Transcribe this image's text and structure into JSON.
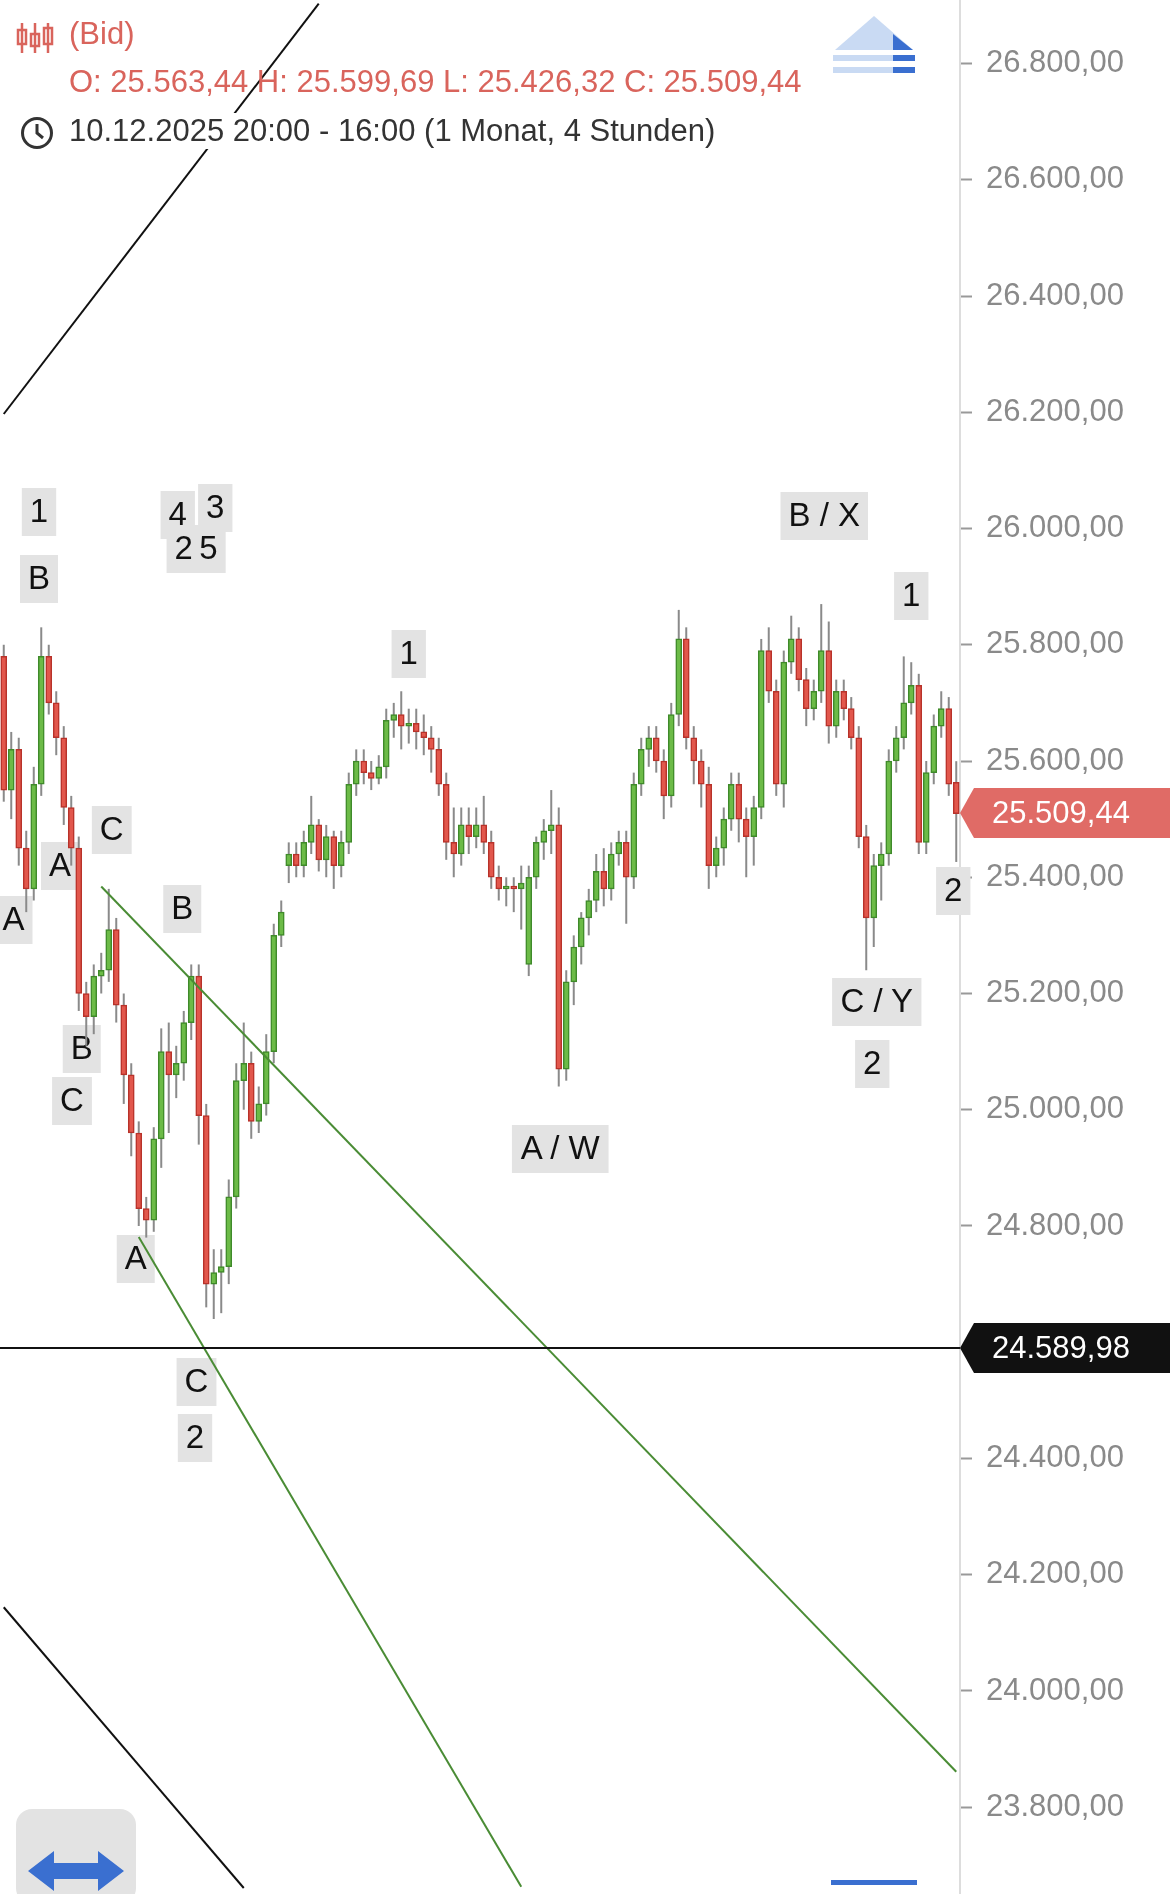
{
  "chart_data": {
    "type": "candlestick",
    "title": "(Bid)",
    "subtitle": "O: 25.563,44  H: 25.599,69  L: 25.426,32  C: 25.509,44",
    "categories": [
      null,
      null,
      null,
      null,
      null,
      null,
      null,
      null,
      null,
      null,
      null,
      null,
      null,
      null,
      null,
      null,
      null,
      null,
      null,
      null,
      null,
      null,
      null,
      null,
      null,
      null,
      null,
      null,
      null,
      null,
      null,
      null,
      null,
      null,
      null,
      null,
      null,
      null,
      null,
      null,
      null,
      null,
      null,
      null,
      null,
      null,
      null,
      null,
      null,
      null,
      null,
      null,
      null,
      null,
      null,
      null,
      null,
      null,
      null,
      null,
      null,
      null,
      null,
      null,
      null,
      null,
      null,
      null,
      null,
      null,
      null,
      null,
      null,
      null,
      null,
      null,
      null,
      null,
      null,
      null,
      null,
      null,
      null,
      null,
      null,
      null,
      null,
      null,
      null,
      null,
      null,
      null,
      null,
      null,
      null,
      null,
      null,
      null,
      null,
      null,
      null,
      null,
      null,
      null,
      null,
      null,
      null,
      null,
      null,
      null,
      null,
      null,
      null,
      null,
      null,
      null,
      null,
      null,
      null,
      null,
      null,
      null,
      null,
      null,
      null,
      null,
      null,
      null
    ],
    "ohlc": [
      [
        25780,
        25800,
        25530,
        25550
      ],
      [
        25550,
        25650,
        25500,
        25620
      ],
      [
        25620,
        25640,
        25420,
        25450
      ],
      [
        25450,
        25480,
        25340,
        25380
      ],
      [
        25380,
        25590,
        25360,
        25560
      ],
      [
        25560,
        25830,
        25540,
        25780
      ],
      [
        25780,
        25800,
        25680,
        25700
      ],
      [
        25700,
        25720,
        25610,
        25640
      ],
      [
        25640,
        25660,
        25490,
        25520
      ],
      [
        25520,
        25540,
        25420,
        25450
      ],
      [
        25450,
        25470,
        25170,
        25200
      ],
      [
        25200,
        25220,
        25110,
        25160
      ],
      [
        25160,
        25250,
        25130,
        25230
      ],
      [
        25230,
        25270,
        25200,
        25240
      ],
      [
        25240,
        25380,
        25220,
        25310
      ],
      [
        25310,
        25330,
        25150,
        25180
      ],
      [
        25180,
        25200,
        25010,
        25060
      ],
      [
        25060,
        25080,
        24920,
        24960
      ],
      [
        24960,
        24980,
        24800,
        24830
      ],
      [
        24830,
        24850,
        24780,
        24810
      ],
      [
        24810,
        24970,
        24790,
        24950
      ],
      [
        24950,
        25140,
        24900,
        25100
      ],
      [
        25100,
        25150,
        24960,
        25060
      ],
      [
        25060,
        25110,
        25020,
        25080
      ],
      [
        25080,
        25170,
        25050,
        25150
      ],
      [
        25150,
        25250,
        25120,
        25230
      ],
      [
        25230,
        25250,
        24940,
        24990
      ],
      [
        24990,
        25010,
        24660,
        24700
      ],
      [
        24700,
        24760,
        24640,
        24720
      ],
      [
        24720,
        24760,
        24650,
        24730
      ],
      [
        24730,
        24880,
        24700,
        24850
      ],
      [
        24850,
        25080,
        24830,
        25050
      ],
      [
        25050,
        25150,
        25000,
        25080
      ],
      [
        25080,
        25100,
        24950,
        24980
      ],
      [
        24980,
        25040,
        24960,
        25010
      ],
      [
        25010,
        25130,
        24990,
        25100
      ],
      [
        25100,
        25320,
        25080,
        25300
      ],
      [
        25300,
        25360,
        25280,
        25340
      ],
      [
        25420,
        25460,
        25390,
        25440
      ],
      [
        25440,
        25460,
        25400,
        25420
      ],
      [
        25420,
        25480,
        25400,
        25460
      ],
      [
        25460,
        25540,
        25440,
        25490
      ],
      [
        25490,
        25500,
        25410,
        25430
      ],
      [
        25430,
        25490,
        25400,
        25470
      ],
      [
        25470,
        25480,
        25380,
        25420
      ],
      [
        25420,
        25480,
        25400,
        25460
      ],
      [
        25460,
        25580,
        25440,
        25560
      ],
      [
        25560,
        25620,
        25540,
        25600
      ],
      [
        25600,
        25620,
        25560,
        25580
      ],
      [
        25580,
        25600,
        25550,
        25570
      ],
      [
        25570,
        25610,
        25560,
        25590
      ],
      [
        25590,
        25690,
        25570,
        25670
      ],
      [
        25670,
        25700,
        25640,
        25680
      ],
      [
        25680,
        25720,
        25620,
        25660
      ],
      [
        25660,
        25690,
        25630,
        25665
      ],
      [
        25665,
        25690,
        25620,
        25650
      ],
      [
        25650,
        25680,
        25610,
        25640
      ],
      [
        25640,
        25660,
        25580,
        25620
      ],
      [
        25620,
        25640,
        25540,
        25560
      ],
      [
        25560,
        25580,
        25430,
        25460
      ],
      [
        25460,
        25520,
        25400,
        25440
      ],
      [
        25440,
        25520,
        25420,
        25490
      ],
      [
        25490,
        25520,
        25440,
        25470
      ],
      [
        25470,
        25520,
        25450,
        25490
      ],
      [
        25490,
        25540,
        25440,
        25460
      ],
      [
        25460,
        25480,
        25380,
        25400
      ],
      [
        25400,
        25420,
        25360,
        25380
      ],
      [
        25380,
        25400,
        25350,
        25385
      ],
      [
        25385,
        25400,
        25340,
        25380
      ],
      [
        25380,
        25420,
        25310,
        25390
      ],
      [
        25250,
        25420,
        25230,
        25400
      ],
      [
        25400,
        25470,
        25380,
        25460
      ],
      [
        25460,
        25500,
        25430,
        25480
      ],
      [
        25480,
        25550,
        25440,
        25490
      ],
      [
        25490,
        25520,
        25040,
        25070
      ],
      [
        25070,
        25240,
        25050,
        25220
      ],
      [
        25220,
        25300,
        25180,
        25280
      ],
      [
        25280,
        25340,
        25250,
        25330
      ],
      [
        25330,
        25380,
        25300,
        25360
      ],
      [
        25360,
        25440,
        25340,
        25410
      ],
      [
        25410,
        25450,
        25350,
        25380
      ],
      [
        25380,
        25460,
        25360,
        25440
      ],
      [
        25440,
        25480,
        25420,
        25460
      ],
      [
        25460,
        25480,
        25320,
        25400
      ],
      [
        25400,
        25580,
        25380,
        25560
      ],
      [
        25560,
        25640,
        25540,
        25620
      ],
      [
        25620,
        25660,
        25590,
        25640
      ],
      [
        25640,
        25660,
        25580,
        25600
      ],
      [
        25600,
        25620,
        25500,
        25540
      ],
      [
        25540,
        25700,
        25520,
        25680
      ],
      [
        25680,
        25860,
        25660,
        25810
      ],
      [
        25810,
        25830,
        25620,
        25640
      ],
      [
        25640,
        25660,
        25560,
        25600
      ],
      [
        25600,
        25620,
        25520,
        25560
      ],
      [
        25560,
        25590,
        25380,
        25420
      ],
      [
        25420,
        25470,
        25400,
        25450
      ],
      [
        25450,
        25520,
        25420,
        25500
      ],
      [
        25500,
        25580,
        25480,
        25560
      ],
      [
        25560,
        25580,
        25460,
        25500
      ],
      [
        25500,
        25520,
        25400,
        25470
      ],
      [
        25470,
        25540,
        25420,
        25520
      ],
      [
        25520,
        25810,
        25500,
        25790
      ],
      [
        25790,
        25830,
        25700,
        25720
      ],
      [
        25720,
        25740,
        25540,
        25560
      ],
      [
        25560,
        25790,
        25520,
        25770
      ],
      [
        25770,
        25850,
        25750,
        25810
      ],
      [
        25810,
        25830,
        25720,
        25740
      ],
      [
        25740,
        25760,
        25660,
        25690
      ],
      [
        25690,
        25740,
        25670,
        25720
      ],
      [
        25720,
        25870,
        25700,
        25790
      ],
      [
        25790,
        25840,
        25630,
        25660
      ],
      [
        25660,
        25740,
        25640,
        25720
      ],
      [
        25720,
        25740,
        25670,
        25690
      ],
      [
        25690,
        25710,
        25620,
        25640
      ],
      [
        25640,
        25660,
        25450,
        25470
      ],
      [
        25470,
        25490,
        25240,
        25330
      ],
      [
        25330,
        25440,
        25280,
        25420
      ],
      [
        25420,
        25460,
        25360,
        25440
      ],
      [
        25440,
        25620,
        25420,
        25600
      ],
      [
        25600,
        25660,
        25580,
        25640
      ],
      [
        25640,
        25780,
        25620,
        25700
      ],
      [
        25700,
        25770,
        25680,
        25730
      ],
      [
        25730,
        25750,
        25440,
        25460
      ],
      [
        25460,
        25600,
        25440,
        25580
      ],
      [
        25580,
        25680,
        25560,
        25660
      ],
      [
        25660,
        25720,
        25640,
        25690
      ],
      [
        25690,
        25710,
        25540,
        25560
      ],
      [
        25563.44,
        25599.69,
        25426.32,
        25509.44
      ]
    ],
    "series": [
      {
        "type": "line",
        "values": [
          null,
          null,
          null,
          null,
          null,
          null,
          null,
          null,
          null,
          null,
          null,
          null,
          null,
          25384,
          null,
          null,
          null,
          null,
          null,
          null,
          null,
          null,
          null,
          null,
          null,
          null,
          null,
          null,
          null,
          null,
          null,
          null,
          null,
          null,
          null,
          null,
          null,
          null,
          null,
          null,
          null,
          null,
          null,
          null,
          null,
          null,
          null,
          null,
          null,
          null,
          null,
          null,
          null,
          null,
          null,
          null,
          null,
          null,
          null,
          null,
          null,
          null,
          null,
          null,
          null,
          null,
          null,
          null,
          null,
          null,
          null,
          null,
          null,
          null,
          null,
          null,
          null,
          null,
          null,
          null,
          null,
          null,
          null,
          null,
          null,
          null,
          null,
          null,
          null,
          null,
          null,
          null,
          null,
          null,
          null,
          null,
          null,
          null,
          null,
          null,
          null,
          null,
          null,
          null,
          null,
          null,
          null,
          null,
          null,
          null,
          null,
          null,
          null,
          null,
          null,
          null,
          null,
          null,
          null,
          null,
          null,
          null,
          null,
          null,
          null,
          null,
          null,
          23861
        ],
        "color": "#4a8c35"
      },
      {
        "type": "line",
        "values": [
          null,
          null,
          null,
          null,
          null,
          null,
          null,
          null,
          null,
          null,
          null,
          null,
          null,
          null,
          null,
          null,
          null,
          null,
          24781,
          null,
          null,
          null,
          null,
          null,
          null,
          null,
          null,
          null,
          null,
          null,
          null,
          null,
          null,
          null,
          null,
          null,
          null,
          null,
          null,
          null,
          null,
          null,
          null,
          null,
          null,
          null,
          null,
          null,
          null,
          null,
          null,
          null,
          null,
          null,
          null,
          null,
          null,
          null,
          null,
          null,
          null,
          null,
          null,
          null,
          null,
          null,
          null,
          null,
          null,
          23663,
          null,
          null,
          null,
          null,
          null,
          null,
          null,
          null,
          null,
          null,
          null,
          null,
          null,
          null,
          null,
          null,
          null,
          null,
          null,
          null,
          null,
          null,
          null,
          null,
          null,
          null,
          null,
          null,
          null,
          null,
          null,
          null,
          null,
          null,
          null,
          null,
          null,
          null,
          null,
          null,
          null,
          null,
          null,
          null,
          null,
          null,
          null,
          null,
          null,
          null,
          null,
          null,
          null,
          null,
          null,
          null,
          null,
          null
        ],
        "color": "#4a8c35"
      },
      {
        "type": "line",
        "values": [
          26197,
          null,
          null,
          null,
          null,
          null,
          null,
          null,
          null,
          null,
          null,
          null,
          null,
          null,
          null,
          null,
          null,
          null,
          null,
          null,
          null,
          null,
          null,
          null,
          null,
          null,
          null,
          null,
          null,
          null,
          null,
          null,
          null,
          null,
          null,
          null,
          null,
          null,
          null,
          null,
          null,
          null,
          26903,
          null,
          null,
          null,
          null,
          null,
          null,
          null,
          null,
          null,
          null,
          null,
          null,
          null,
          null,
          null,
          null,
          null,
          null,
          null,
          null,
          null,
          null,
          null,
          null,
          null,
          null,
          null,
          null,
          null,
          null,
          null,
          null,
          null,
          null,
          null,
          null,
          null,
          null,
          null,
          null,
          null,
          null,
          null,
          null,
          null,
          null,
          null,
          null,
          null,
          null,
          null,
          null,
          null,
          null,
          null,
          null,
          null,
          null,
          null,
          null,
          null,
          null,
          null,
          null,
          null,
          null,
          null,
          null,
          null,
          null,
          null,
          null,
          null,
          null,
          null,
          null,
          null,
          null,
          null,
          null,
          null,
          null,
          null,
          null,
          null
        ],
        "color": "#111111"
      },
      {
        "type": "line",
        "values": [
          24144,
          null,
          null,
          null,
          null,
          null,
          null,
          null,
          null,
          null,
          null,
          null,
          null,
          null,
          null,
          null,
          null,
          null,
          null,
          null,
          null,
          null,
          null,
          null,
          null,
          null,
          null,
          null,
          null,
          null,
          null,
          null,
          23661,
          null,
          null,
          null,
          null,
          null,
          null,
          null,
          null,
          null,
          null,
          null,
          null,
          null,
          null,
          null,
          null,
          null,
          null,
          null,
          null,
          null,
          null,
          null,
          null,
          null,
          null,
          null,
          null,
          null,
          null,
          null,
          null,
          null,
          null,
          null,
          null,
          null,
          null,
          null,
          null,
          null,
          null,
          null,
          null,
          null,
          null,
          null,
          null,
          null,
          null,
          null,
          null,
          null,
          null,
          null,
          null,
          null,
          null,
          null,
          null,
          null,
          null,
          null,
          null,
          null,
          null,
          null,
          null,
          null,
          null,
          null,
          null,
          null,
          null,
          null,
          null,
          null,
          null,
          null,
          null,
          null,
          null,
          null,
          null,
          null,
          null,
          null,
          null,
          null,
          null,
          null,
          null,
          null,
          null,
          null
        ],
        "color": "#111111"
      }
    ],
    "ylim": [
      23650,
      26910
    ],
    "yticks": [
      {
        "value": 23800,
        "label": "23.800,00"
      },
      {
        "value": 24000,
        "label": "24.000,00"
      },
      {
        "value": 24200,
        "label": "24.200,00"
      },
      {
        "value": 24400,
        "label": "24.400,00"
      },
      {
        "value": 24800,
        "label": "24.800,00"
      },
      {
        "value": 25000,
        "label": "25.000,00"
      },
      {
        "value": 25200,
        "label": "25.200,00"
      },
      {
        "value": 25400,
        "label": "25.400,00"
      },
      {
        "value": 25600,
        "label": "25.600,00"
      },
      {
        "value": 25800,
        "label": "25.800,00"
      },
      {
        "value": 26000,
        "label": "26.000,00"
      },
      {
        "value": 26200,
        "label": "26.200,00"
      },
      {
        "value": 26400,
        "label": "26.400,00"
      },
      {
        "value": 26600,
        "label": "26.600,00"
      },
      {
        "value": 26800,
        "label": "26.800,00"
      }
    ],
    "tick_labels": "y",
    "ref_lines": [
      {
        "axis": "y",
        "value": 24589.98,
        "label": "24.589,98",
        "color": "#111111"
      }
    ],
    "annotations": [
      "10.12.2025 20:00 - 16:00   (1 Monat, 4 Stunden)",
      "25.509,44",
      "1",
      "B",
      "4",
      "3",
      "2",
      "5",
      "A",
      "A",
      "C",
      "B",
      "B",
      "C",
      "A",
      "C",
      "2",
      "1",
      "A / W",
      "B / X",
      "1",
      "2",
      "C / Y",
      "2"
    ]
  }
}
